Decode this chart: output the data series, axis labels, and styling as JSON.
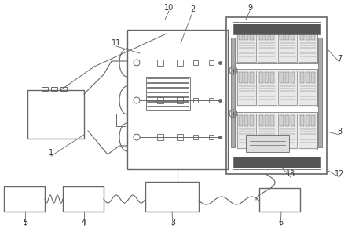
{
  "bg_color": "#ffffff",
  "lc": "#666666",
  "dc": "#333333",
  "dark_fill": "#555555",
  "light_fill": "#e0e0e0",
  "mid_fill": "#cccccc",
  "figsize": [
    4.43,
    2.91
  ],
  "dpi": 100
}
